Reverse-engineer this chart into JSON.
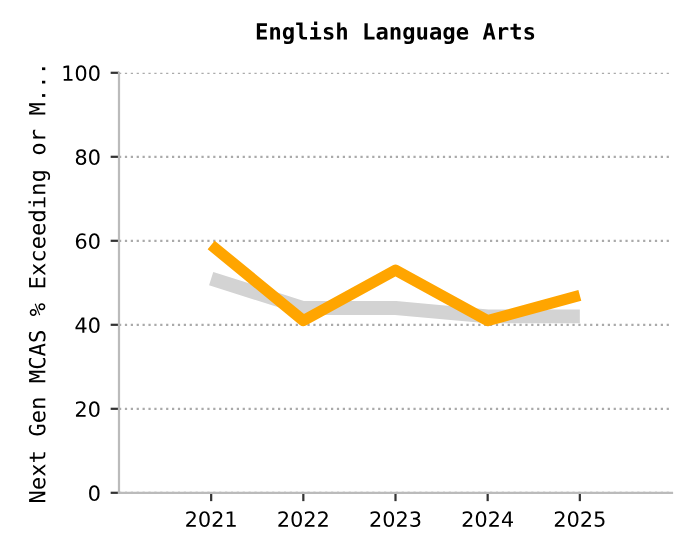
{
  "chart_data": {
    "type": "line",
    "title": "English Language Arts",
    "ylabel": "Next Gen MCAS % Exceeding or M...",
    "categories": [
      "2021",
      "2022",
      "2023",
      "2024",
      "2025"
    ],
    "series": [
      {
        "color": "#d3d3d3",
        "values": [
          51,
          44,
          44,
          42,
          42
        ]
      },
      {
        "color": "#ffa500",
        "values": [
          59,
          41,
          53,
          41,
          47
        ]
      }
    ],
    "ylim": [
      0,
      100
    ],
    "yticks": [
      0,
      20,
      40,
      60,
      80,
      100
    ],
    "grid": "y",
    "marker": "none",
    "line_style": "solid"
  }
}
